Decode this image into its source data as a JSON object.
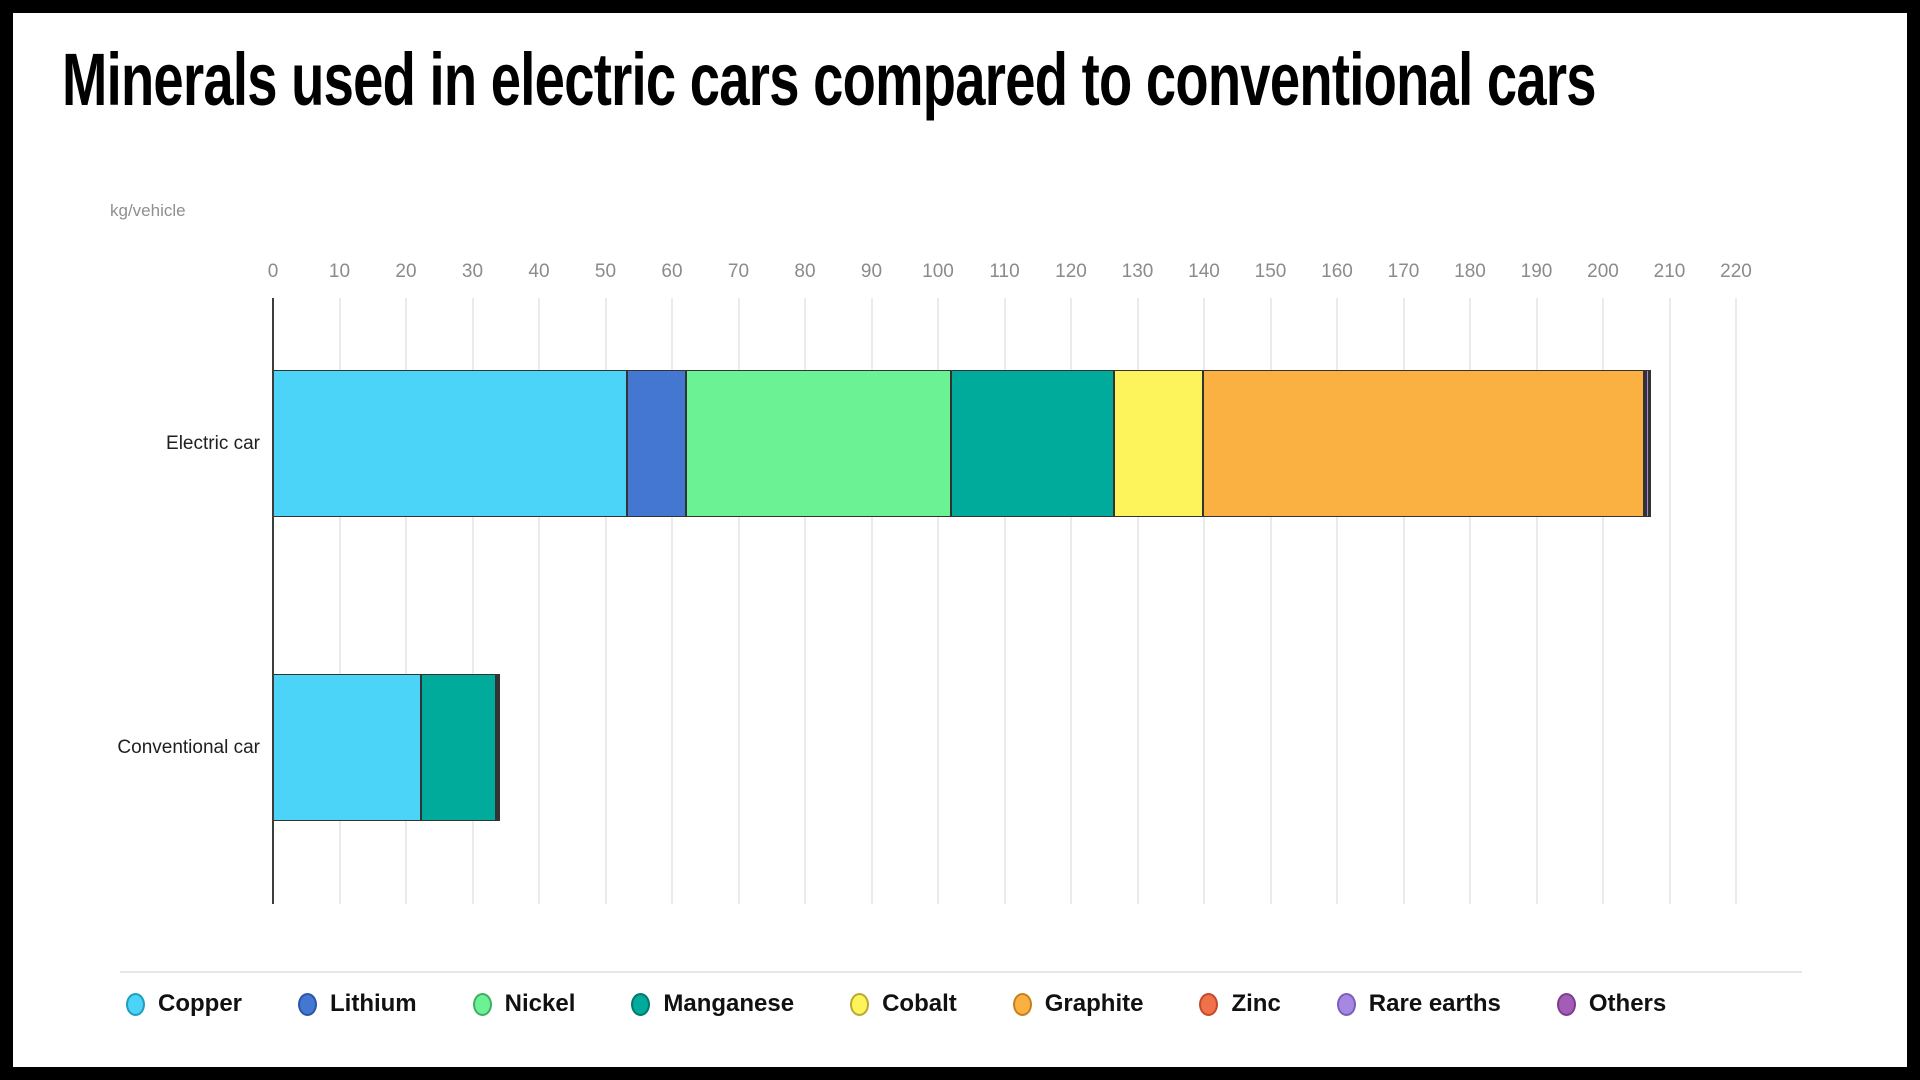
{
  "chart_data": {
    "type": "bar",
    "orientation": "horizontal",
    "stacked": true,
    "title": "Minerals used in electric cars compared to conventional cars",
    "unit_label": "kg/vehicle",
    "categories": [
      "Electric car",
      "Conventional car"
    ],
    "series": [
      {
        "name": "Copper",
        "color": "#4BD4F7",
        "dot_stroke": "#1f9dbf",
        "values": [
          53.2,
          22.3
        ]
      },
      {
        "name": "Lithium",
        "color": "#4377D2",
        "dot_stroke": "#2a55a8",
        "values": [
          8.9,
          0
        ]
      },
      {
        "name": "Nickel",
        "color": "#6BF295",
        "dot_stroke": "#3fae62",
        "values": [
          39.9,
          0
        ]
      },
      {
        "name": "Manganese",
        "color": "#01AB9B",
        "dot_stroke": "#00786d",
        "values": [
          24.5,
          11.2
        ]
      },
      {
        "name": "Cobalt",
        "color": "#FDF45C",
        "dot_stroke": "#b8a830",
        "values": [
          13.3,
          0
        ]
      },
      {
        "name": "Graphite",
        "color": "#FBB042",
        "dot_stroke": "#c77f1e",
        "values": [
          66.3,
          0
        ]
      },
      {
        "name": "Zinc",
        "color": "#F1714B",
        "dot_stroke": "#c24a2a",
        "values": [
          0.1,
          0.1
        ]
      },
      {
        "name": "Rare earths",
        "color": "#A687E2",
        "dot_stroke": "#7a5fc0",
        "values": [
          0.5,
          0
        ]
      },
      {
        "name": "Others",
        "color": "#A35CB8",
        "dot_stroke": "#7d3f8d",
        "values": [
          0.3,
          0.3
        ]
      }
    ],
    "x_axis": {
      "min": 0,
      "max": 220,
      "tick_step": 10,
      "ticks": [
        0,
        10,
        20,
        30,
        40,
        50,
        60,
        70,
        80,
        90,
        100,
        110,
        120,
        130,
        140,
        150,
        160,
        170,
        180,
        190,
        200,
        210,
        220
      ]
    },
    "grid": true,
    "legend_position": "bottom",
    "colors": {
      "background": "#ffffff",
      "frame": "#000000",
      "title_text": "#000000",
      "gridline": "#ebebeb",
      "axis_line": "#3d3d3d",
      "tick_label": "#8b8b8b",
      "category_label": "#1f1f1f",
      "segment_border": "#333333",
      "separator": "#e7e7e7",
      "legend_label": "#111111"
    }
  }
}
